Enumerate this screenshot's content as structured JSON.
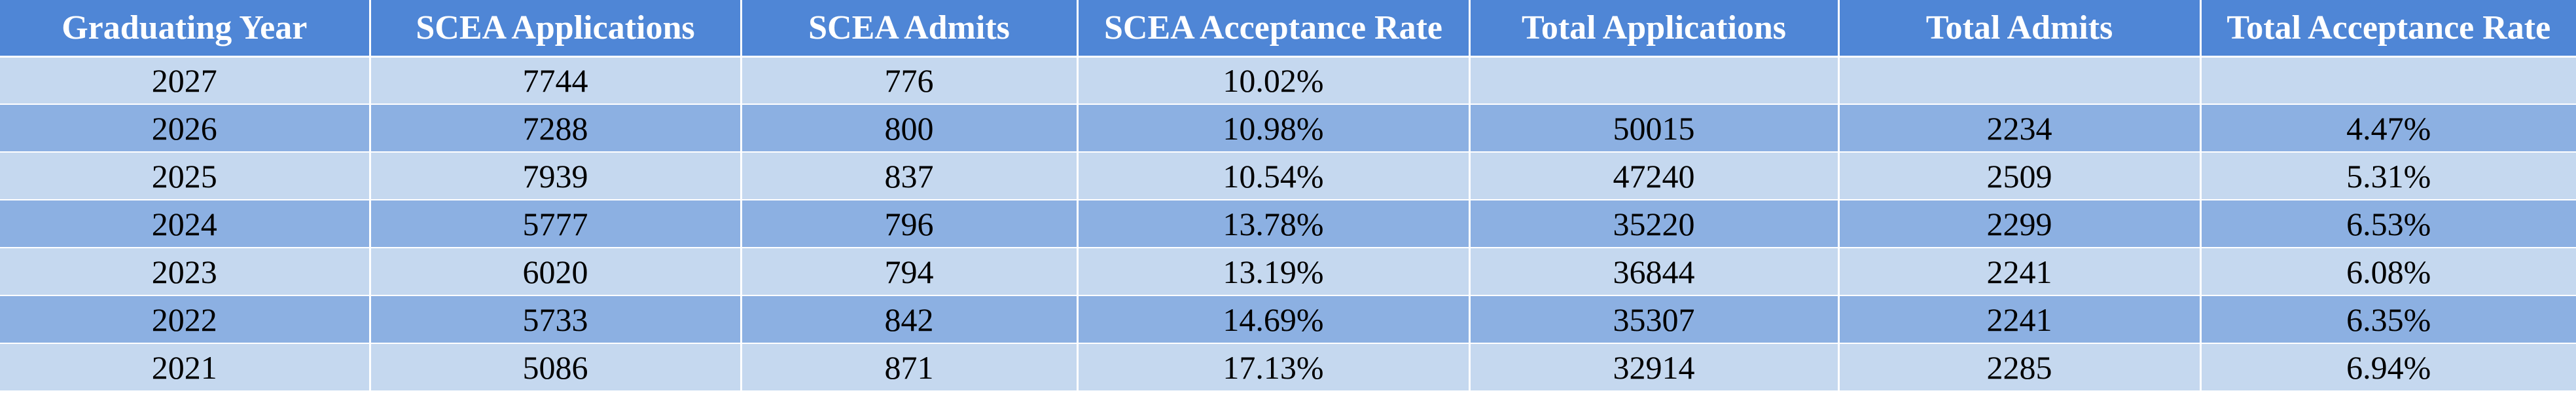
{
  "colors": {
    "header_bg": "#4f86d6",
    "row_light": "#c5d8ef",
    "row_dark": "#8cb0e2",
    "header_text": "#ffffff"
  },
  "table": {
    "headers": [
      "Graduating Year",
      "SCEA Applications",
      "SCEA Admits",
      "SCEA Acceptance Rate",
      "Total Applications",
      "Total Admits",
      "Total Acceptance Rate"
    ],
    "rows": [
      [
        "2027",
        "7744",
        "776",
        "10.02%",
        "",
        "",
        ""
      ],
      [
        "2026",
        "7288",
        "800",
        "10.98%",
        "50015",
        "2234",
        "4.47%"
      ],
      [
        "2025",
        "7939",
        "837",
        "10.54%",
        "47240",
        "2509",
        "5.31%"
      ],
      [
        "2024",
        "5777",
        "796",
        "13.78%",
        "35220",
        "2299",
        "6.53%"
      ],
      [
        "2023",
        "6020",
        "794",
        "13.19%",
        "36844",
        "2241",
        "6.08%"
      ],
      [
        "2022",
        "5733",
        "842",
        "14.69%",
        "35307",
        "2241",
        "6.35%"
      ],
      [
        "2021",
        "5086",
        "871",
        "17.13%",
        "32914",
        "2285",
        "6.94%"
      ]
    ]
  }
}
